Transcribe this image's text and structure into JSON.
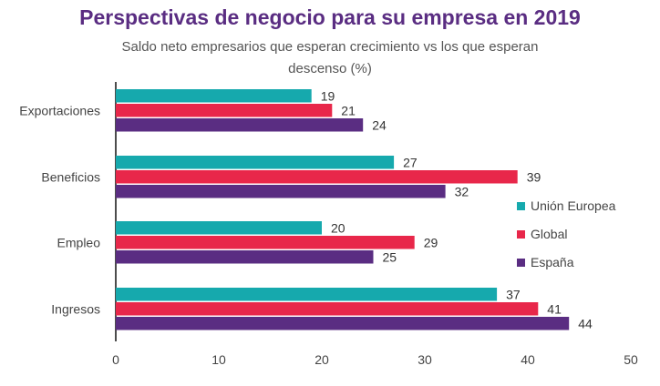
{
  "chart_data": {
    "type": "bar",
    "orientation": "horizontal",
    "title": "Perspectivas de negocio para su empresa en 2019",
    "subtitle": "Saldo neto empresarios que esperan crecimiento vs los que esperan descenso (%)",
    "categories": [
      "Exportaciones",
      "Beneficios",
      "Empleo",
      "Ingresos"
    ],
    "series": [
      {
        "name": "Unión Europea",
        "color": "#16a9ad",
        "values": [
          19,
          27,
          20,
          37
        ]
      },
      {
        "name": "Global",
        "color": "#e8274a",
        "values": [
          21,
          39,
          29,
          41
        ]
      },
      {
        "name": "España",
        "color": "#5a2d82",
        "values": [
          24,
          32,
          25,
          44
        ]
      }
    ],
    "xlim": [
      0,
      50
    ],
    "xticks": [
      0,
      10,
      20,
      30,
      40,
      50
    ],
    "grid": false,
    "legend": "right"
  }
}
